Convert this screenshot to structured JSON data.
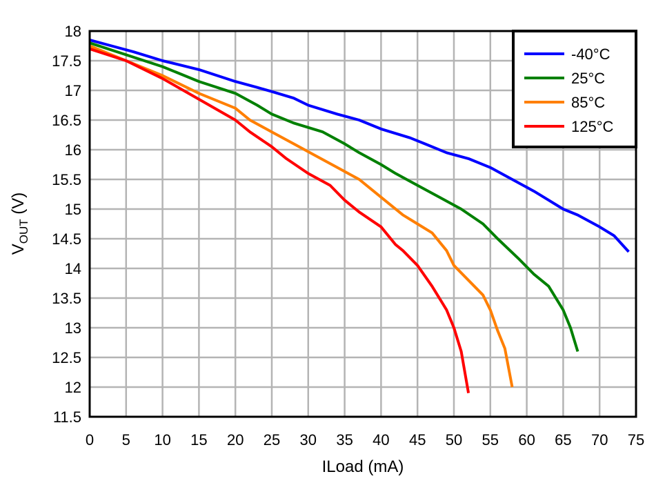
{
  "chart_data": {
    "type": "line",
    "xlabel": "ILoad (mA)",
    "ylabel": {
      "main": "V",
      "sub": "OUT",
      "unit": " (V)"
    },
    "xlim": [
      0,
      75
    ],
    "ylim": [
      11.5,
      18
    ],
    "xticks": [
      "0",
      "5",
      "10",
      "15",
      "20",
      "25",
      "30",
      "35",
      "40",
      "45",
      "50",
      "55",
      "60",
      "65",
      "70",
      "75"
    ],
    "yticks": [
      "11.5",
      "12",
      "12.5",
      "13",
      "13.5",
      "14",
      "14.5",
      "15",
      "15.5",
      "16",
      "16.5",
      "17",
      "17.5",
      "18"
    ],
    "grid": true,
    "legend_position": "top-right",
    "series": [
      {
        "name": "-40°C",
        "color": "#0000ff",
        "x": [
          0,
          3,
          6,
          10,
          15,
          20,
          23,
          25,
          28,
          30,
          34,
          37,
          40,
          44,
          46,
          49,
          52,
          55,
          58,
          61,
          63,
          65,
          67,
          70,
          72,
          74
        ],
        "y": [
          17.85,
          17.75,
          17.65,
          17.5,
          17.35,
          17.15,
          17.05,
          16.98,
          16.87,
          16.75,
          16.6,
          16.5,
          16.35,
          16.2,
          16.1,
          15.95,
          15.85,
          15.7,
          15.5,
          15.3,
          15.15,
          15.0,
          14.9,
          14.7,
          14.55,
          14.28
        ]
      },
      {
        "name": "25°C",
        "color": "#008000",
        "x": [
          0,
          5,
          10,
          15,
          20,
          23,
          25,
          28,
          32,
          35,
          37,
          40,
          42,
          45,
          48,
          51,
          54,
          56,
          59,
          61,
          63,
          65,
          66,
          67
        ],
        "y": [
          17.8,
          17.6,
          17.4,
          17.15,
          16.95,
          16.75,
          16.6,
          16.45,
          16.3,
          16.1,
          15.95,
          15.75,
          15.6,
          15.4,
          15.2,
          15.0,
          14.75,
          14.5,
          14.15,
          13.9,
          13.7,
          13.3,
          13.0,
          12.6
        ]
      },
      {
        "name": "85°C",
        "color": "#ff7f00",
        "x": [
          0,
          5,
          10,
          15,
          20,
          22,
          25,
          28,
          31,
          34,
          37,
          39,
          41,
          43,
          45,
          47,
          49,
          50,
          52,
          54,
          55,
          56,
          57,
          58
        ],
        "y": [
          17.75,
          17.5,
          17.25,
          16.95,
          16.7,
          16.5,
          16.3,
          16.1,
          15.9,
          15.7,
          15.5,
          15.3,
          15.1,
          14.9,
          14.75,
          14.6,
          14.3,
          14.05,
          13.8,
          13.55,
          13.3,
          12.95,
          12.65,
          12.0
        ]
      },
      {
        "name": "125°C",
        "color": "#ff0000",
        "x": [
          0,
          5,
          10,
          15,
          20,
          22,
          25,
          27,
          30,
          33,
          35,
          37,
          40,
          42,
          43,
          45,
          47,
          49,
          50,
          51,
          52
        ],
        "y": [
          17.7,
          17.5,
          17.2,
          16.85,
          16.5,
          16.3,
          16.05,
          15.85,
          15.6,
          15.4,
          15.15,
          14.95,
          14.7,
          14.4,
          14.3,
          14.05,
          13.7,
          13.3,
          13.0,
          12.6,
          11.9
        ]
      }
    ]
  }
}
